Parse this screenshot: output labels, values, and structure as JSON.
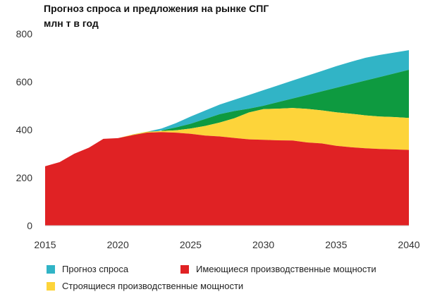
{
  "chart_data": {
    "type": "area",
    "title": "Прогноз спроса и предложения на рынке СПГ",
    "ylabel": "млн т в год",
    "xlabel": "",
    "xlim": [
      2015,
      2040
    ],
    "ylim": [
      0,
      800
    ],
    "xticks": [
      "2015",
      "2020",
      "2025",
      "2030",
      "2035",
      "2040"
    ],
    "yticks": [
      "0",
      "200",
      "400",
      "600",
      "800"
    ],
    "grid": false,
    "legend_position": "bottom",
    "x": [
      2015,
      2016,
      2017,
      2018,
      2019,
      2020,
      2021,
      2022,
      2023,
      2024,
      2025,
      2026,
      2027,
      2028,
      2029,
      2030,
      2031,
      2032,
      2033,
      2034,
      2035,
      2036,
      2037,
      2038,
      2039,
      2040
    ],
    "series": [
      {
        "name": "Имеющиеся производственные мощности",
        "color": "#e02224",
        "values": [
          248,
          265,
          300,
          325,
          362,
          365,
          377,
          388,
          390,
          388,
          383,
          376,
          372,
          366,
          360,
          358,
          356,
          355,
          347,
          343,
          333,
          327,
          323,
          320,
          318,
          316
        ]
      },
      {
        "name": "Строящиеся производственные мощности",
        "color": "#fdd43a",
        "values": [
          0,
          0,
          0,
          0,
          0,
          0,
          3,
          4,
          5,
          10,
          22,
          40,
          58,
          82,
          112,
          128,
          132,
          136,
          140,
          138,
          140,
          140,
          137,
          135,
          135,
          133
        ]
      },
      {
        "name": "Прогноз спроса",
        "color": "#31b4c6",
        "low": [
          0,
          0,
          0,
          0,
          0,
          0,
          373,
          384,
          397,
          410,
          425,
          445,
          465,
          478,
          488,
          500,
          515,
          530,
          545,
          560,
          575,
          590,
          605,
          620,
          635,
          650
        ],
        "high": [
          0,
          0,
          0,
          0,
          0,
          0,
          380,
          392,
          405,
          428,
          455,
          480,
          505,
          525,
          545,
          565,
          585,
          605,
          625,
          645,
          665,
          683,
          700,
          712,
          722,
          732
        ]
      }
    ],
    "overlap_color": "#0e9a40"
  }
}
